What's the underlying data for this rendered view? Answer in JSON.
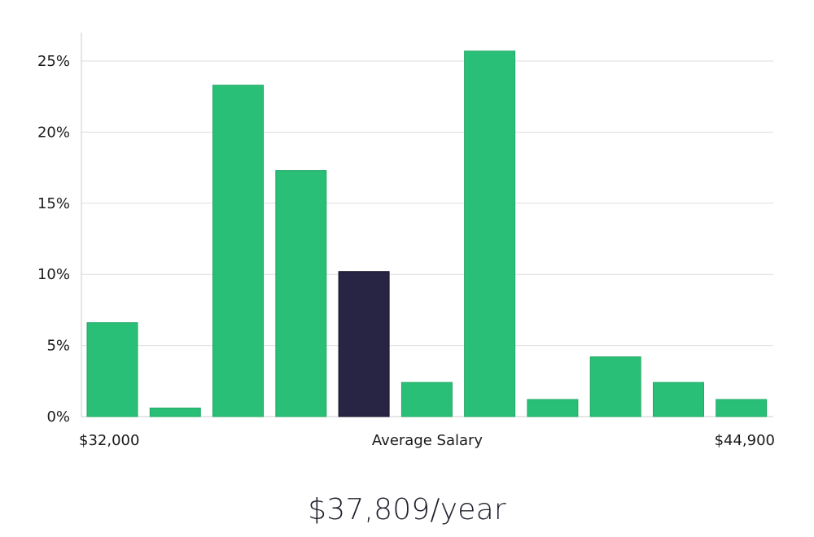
{
  "chart_data": {
    "type": "bar",
    "xlabel": "Average Salary",
    "x_min_label": "$32,000",
    "x_max_label": "$44,900",
    "ylim": [
      0,
      27
    ],
    "y_ticks": [
      0,
      5,
      10,
      15,
      20,
      25
    ],
    "y_tick_labels": [
      "0%",
      "5%",
      "10%",
      "15%",
      "20%",
      "25%"
    ],
    "values": [
      6.6,
      0.6,
      23.3,
      17.3,
      10.2,
      2.4,
      25.7,
      1.2,
      4.2,
      2.4,
      1.2
    ],
    "highlight_index": 4,
    "colors": {
      "bar": "#2abf77",
      "bar_stroke": "#22a866",
      "highlight": "#272444",
      "highlight_stroke": "#15132b",
      "grid": "#dddddd",
      "axis": "#cccccc"
    }
  },
  "summary": {
    "salary_text": "$37,809/year"
  }
}
